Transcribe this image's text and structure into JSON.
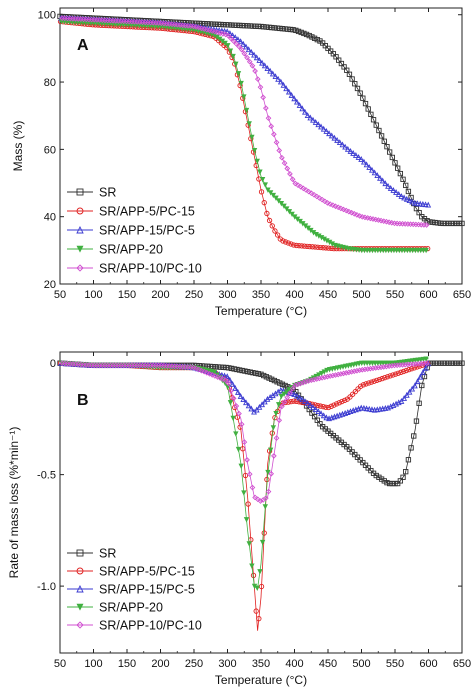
{
  "chart_data": [
    {
      "type": "line",
      "panel_label": "A",
      "xlabel": "Temperature (°C)",
      "ylabel": "Mass (%)",
      "xlim": [
        50,
        650
      ],
      "ylim": [
        20,
        102
      ],
      "xticks": [
        50,
        100,
        150,
        200,
        250,
        300,
        350,
        400,
        450,
        500,
        550,
        600,
        650
      ],
      "yticks": [
        20,
        40,
        60,
        80,
        100
      ],
      "grid": false,
      "legend_position": "bottom-left",
      "series": [
        {
          "name": "SR",
          "color": "#303030",
          "marker": "square",
          "x": [
            50,
            100,
            150,
            200,
            250,
            300,
            350,
            400,
            420,
            440,
            460,
            480,
            500,
            520,
            540,
            560,
            580,
            590,
            600,
            620,
            650
          ],
          "y": [
            99.5,
            99,
            98.5,
            98,
            97.5,
            97,
            96.5,
            95.5,
            94,
            92,
            88,
            83,
            76,
            68,
            60,
            52,
            43,
            40,
            38.5,
            38,
            38
          ]
        },
        {
          "name": "SR/APP-5/PC-15",
          "color": "#e02020",
          "marker": "circle",
          "x": [
            50,
            100,
            150,
            200,
            250,
            280,
            300,
            310,
            320,
            330,
            340,
            350,
            360,
            370,
            380,
            400,
            430,
            460,
            500,
            550,
            600
          ],
          "y": [
            98,
            97,
            96.5,
            96,
            95,
            93.5,
            90,
            86,
            78,
            68,
            58,
            48,
            40,
            36,
            33,
            31.5,
            31,
            30.5,
            30.5,
            30.5,
            30.5
          ]
        },
        {
          "name": "SR/APP-15/PC-5",
          "color": "#3a3ad0",
          "marker": "triangle-up",
          "x": [
            50,
            100,
            150,
            200,
            250,
            300,
            320,
            340,
            360,
            380,
            400,
            420,
            450,
            480,
            500,
            520,
            540,
            560,
            580,
            600
          ],
          "y": [
            99,
            98.5,
            98,
            97.5,
            96.5,
            95,
            92,
            88,
            84,
            80,
            75,
            70,
            65,
            60,
            57,
            53,
            49,
            46,
            44,
            43.5
          ]
        },
        {
          "name": "SR/APP-20",
          "color": "#40b040",
          "marker": "triangle-down",
          "x": [
            50,
            100,
            150,
            200,
            250,
            280,
            300,
            310,
            320,
            330,
            340,
            350,
            360,
            380,
            400,
            430,
            460,
            480,
            500,
            550,
            600
          ],
          "y": [
            98,
            97.5,
            97,
            96.5,
            95.5,
            94,
            91,
            87,
            80,
            70,
            60,
            52,
            48,
            44,
            40,
            35,
            31.5,
            30.5,
            30,
            30,
            30
          ]
        },
        {
          "name": "SR/APP-10/PC-10",
          "color": "#d050d0",
          "marker": "diamond",
          "x": [
            50,
            100,
            150,
            200,
            250,
            300,
            320,
            340,
            350,
            360,
            380,
            400,
            450,
            500,
            550,
            600
          ],
          "y": [
            99,
            98.5,
            98,
            97.5,
            96.5,
            94,
            90,
            84,
            78,
            70,
            58,
            50,
            44,
            40,
            38,
            37.5
          ]
        }
      ]
    },
    {
      "type": "line",
      "panel_label": "B",
      "xlabel": "Temperature (°C)",
      "ylabel": "Rate of mass loss (%*min⁻¹)",
      "xlim": [
        50,
        650
      ],
      "ylim": [
        -1.3,
        0.05
      ],
      "xticks": [
        50,
        100,
        150,
        200,
        250,
        300,
        350,
        400,
        450,
        500,
        550,
        600,
        650
      ],
      "yticks": [
        0,
        -0.5,
        -1.0
      ],
      "ytick_labels": [
        "0",
        "-0.5",
        "-1.0"
      ],
      "grid": false,
      "legend_position": "bottom-left",
      "series": [
        {
          "name": "SR",
          "color": "#303030",
          "marker": "square",
          "x": [
            50,
            100,
            150,
            200,
            250,
            300,
            350,
            400,
            420,
            440,
            460,
            480,
            500,
            520,
            540,
            555,
            565,
            580,
            590,
            600,
            620,
            650
          ],
          "y": [
            0,
            -0.01,
            -0.01,
            -0.01,
            -0.01,
            -0.02,
            -0.05,
            -0.12,
            -0.2,
            -0.28,
            -0.33,
            -0.38,
            -0.44,
            -0.5,
            -0.54,
            -0.54,
            -0.5,
            -0.3,
            -0.1,
            0,
            0,
            0
          ]
        },
        {
          "name": "SR/APP-5/PC-15",
          "color": "#e02020",
          "marker": "circle",
          "x": [
            50,
            100,
            150,
            200,
            250,
            280,
            300,
            320,
            330,
            340,
            345,
            350,
            355,
            360,
            370,
            380,
            400,
            420,
            450,
            480,
            500,
            550,
            600
          ],
          "y": [
            0,
            -0.01,
            -0.01,
            -0.02,
            -0.02,
            -0.04,
            -0.08,
            -0.3,
            -0.6,
            -1.0,
            -1.2,
            -1.05,
            -0.75,
            -0.45,
            -0.25,
            -0.18,
            -0.17,
            -0.18,
            -0.2,
            -0.16,
            -0.1,
            -0.05,
            0
          ]
        },
        {
          "name": "SR/APP-15/PC-5",
          "color": "#3a3ad0",
          "marker": "triangle-up",
          "x": [
            50,
            100,
            150,
            200,
            250,
            300,
            320,
            340,
            360,
            380,
            400,
            420,
            450,
            480,
            500,
            520,
            540,
            560,
            580,
            600
          ],
          "y": [
            0,
            -0.01,
            -0.01,
            -0.01,
            -0.02,
            -0.06,
            -0.15,
            -0.22,
            -0.16,
            -0.12,
            -0.14,
            -0.18,
            -0.25,
            -0.22,
            -0.2,
            -0.21,
            -0.2,
            -0.17,
            -0.1,
            0
          ]
        },
        {
          "name": "SR/APP-20",
          "color": "#40b040",
          "marker": "triangle-down",
          "x": [
            50,
            100,
            150,
            200,
            250,
            280,
            300,
            320,
            330,
            340,
            345,
            350,
            360,
            370,
            380,
            400,
            420,
            450,
            500,
            550,
            600
          ],
          "y": [
            0,
            -0.01,
            -0.01,
            -0.02,
            -0.02,
            -0.04,
            -0.1,
            -0.45,
            -0.75,
            -1.0,
            -1.01,
            -0.9,
            -0.5,
            -0.25,
            -0.15,
            -0.1,
            -0.08,
            -0.03,
            0,
            0,
            0.02
          ]
        },
        {
          "name": "SR/APP-10/PC-10",
          "color": "#d050d0",
          "marker": "diamond",
          "x": [
            50,
            100,
            150,
            200,
            250,
            300,
            320,
            330,
            340,
            350,
            360,
            370,
            380,
            400,
            420,
            450,
            500,
            550,
            600
          ],
          "y": [
            0,
            -0.01,
            -0.01,
            -0.01,
            -0.02,
            -0.08,
            -0.25,
            -0.45,
            -0.6,
            -0.62,
            -0.6,
            -0.4,
            -0.2,
            -0.1,
            -0.08,
            -0.06,
            -0.03,
            -0.01,
            0
          ]
        }
      ]
    }
  ]
}
